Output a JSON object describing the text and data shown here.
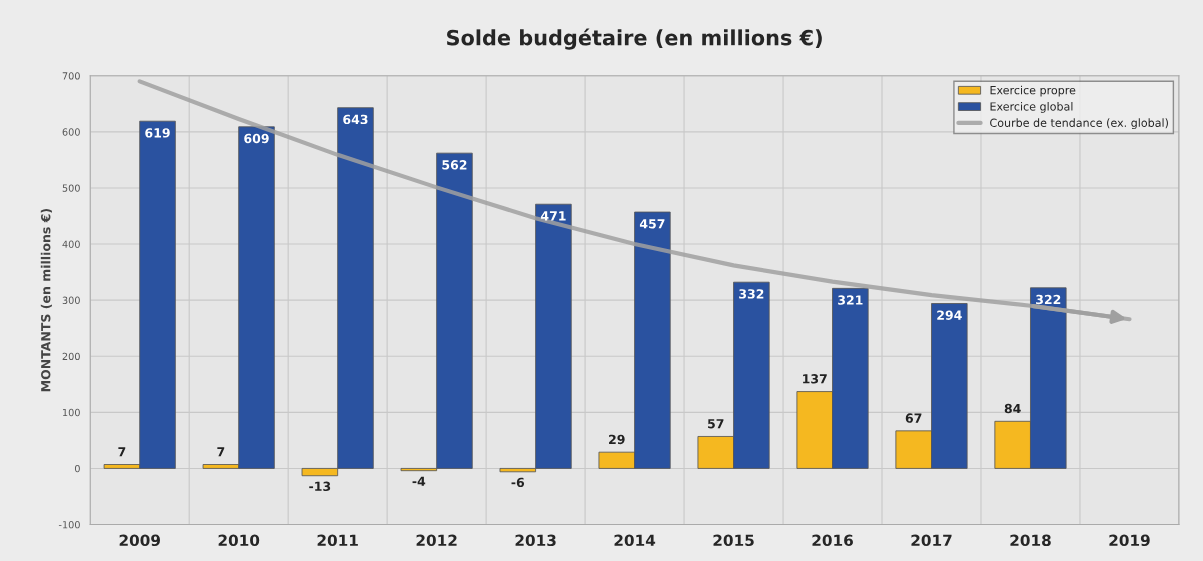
{
  "chart_data": {
    "type": "bar",
    "title": "Solde budgétaire (en millions €)",
    "ylabel": "MONTANTS (en millions €)",
    "categories": [
      "2009",
      "2010",
      "2011",
      "2012",
      "2013",
      "2014",
      "2015",
      "2016",
      "2017",
      "2018",
      "2019"
    ],
    "series": [
      {
        "name": "Exercice propre",
        "color": "#f5b820",
        "values": [
          7,
          7,
          -13,
          -4,
          -6,
          29,
          57,
          137,
          67,
          84,
          null
        ],
        "value_labels": [
          "7",
          "7",
          "-13",
          "-4",
          "-6",
          "29",
          "57",
          "137",
          "67",
          "84",
          null
        ]
      },
      {
        "name": "Exercice global",
        "color": "#2a52a0",
        "values": [
          619,
          609,
          643,
          562,
          471,
          457,
          332,
          321,
          294,
          322,
          null
        ],
        "value_labels": [
          "619",
          "609",
          "643",
          "562",
          "471",
          "457",
          "332",
          "321",
          "294",
          "322",
          null
        ]
      },
      {
        "name": "Courbe de tendance (ex. global)",
        "type": "line",
        "color": "#a0a0a0",
        "values": [
          690,
          623,
          559,
          501,
          446,
          400,
          362,
          333,
          309,
          290,
          266
        ]
      }
    ],
    "ylim": [
      -100,
      700
    ],
    "yticks": [
      -100,
      0,
      100,
      200,
      300,
      400,
      500,
      600,
      700
    ],
    "grid": true,
    "legend": "top right",
    "marker": "none"
  }
}
